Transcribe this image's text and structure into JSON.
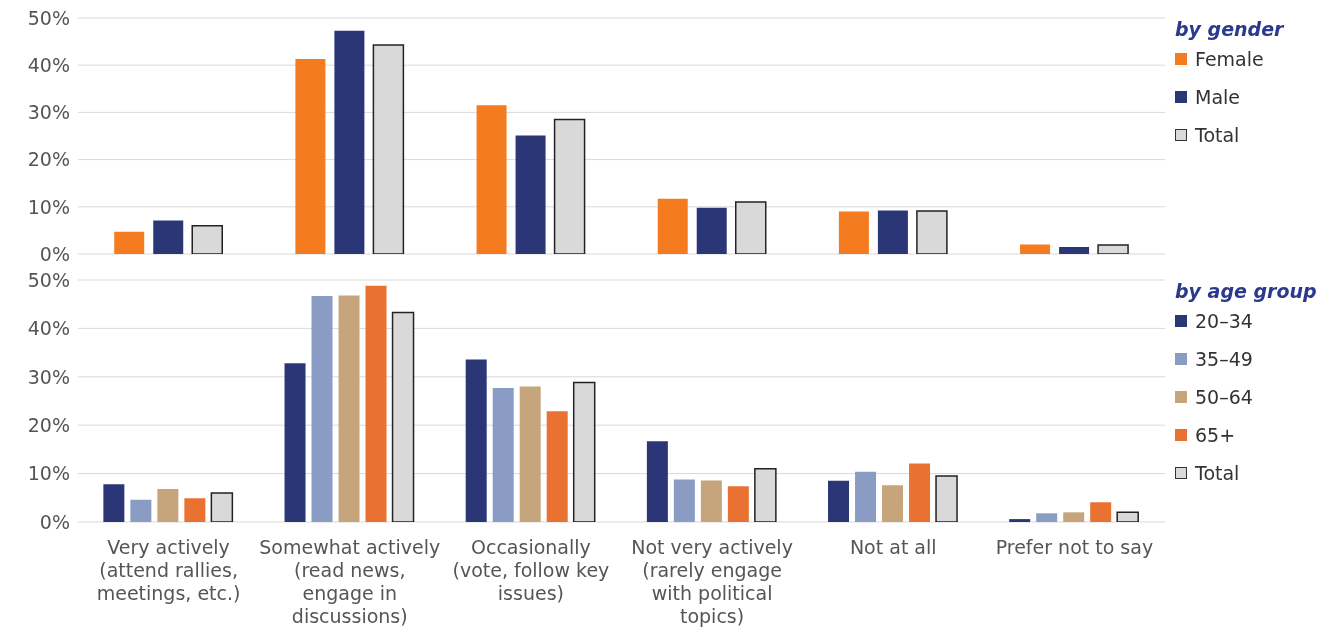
{
  "chart_data": [
    {
      "type": "bar",
      "legend_title": "by gender",
      "categories": [
        null,
        null,
        null,
        null,
        null,
        null
      ],
      "series": [
        {
          "name": "Female",
          "color": "#f47b20",
          "values": [
            4.7,
            41.3,
            31.5,
            11.7,
            9.0,
            2.0
          ]
        },
        {
          "name": "Male",
          "color": "#2b3677",
          "values": [
            7.1,
            47.3,
            25.1,
            9.8,
            9.2,
            1.5
          ]
        },
        {
          "name": "Total",
          "color": "#d9d9d9",
          "values": [
            6.0,
            44.3,
            28.5,
            11.0,
            9.1,
            1.9
          ]
        }
      ],
      "ylim": [
        0,
        50
      ],
      "yticks": [
        {
          "value": 0,
          "label": "0%"
        },
        {
          "value": 10,
          "label": "10%"
        },
        {
          "value": 20,
          "label": "20%"
        },
        {
          "value": 30,
          "label": "30%"
        },
        {
          "value": 40,
          "label": "40%"
        },
        {
          "value": 50,
          "label": "50%"
        }
      ],
      "grid": "y",
      "legend": "top right",
      "tick_labels": "y"
    },
    {
      "type": "bar",
      "legend_title": "by age group",
      "categories": [
        "Very actively (attend rallies, meetings, etc.)",
        "Somewhat actively (read news, engage in discussions)",
        "Occasionally (vote, follow key issues)",
        "Not very actively (rarely engage with political topics)",
        "Not at all",
        "Prefer not to say"
      ],
      "series": [
        {
          "name": "20–34",
          "color": "#2b3677",
          "values": [
            7.8,
            32.8,
            33.6,
            16.7,
            8.5,
            0.6
          ]
        },
        {
          "name": "35–49",
          "color": "#8a9cc4",
          "values": [
            4.6,
            46.7,
            27.7,
            8.8,
            10.4,
            1.8
          ]
        },
        {
          "name": "50–64",
          "color": "#c6a57c",
          "values": [
            6.8,
            46.8,
            28.0,
            8.6,
            7.6,
            2.0
          ]
        },
        {
          "name": "65+",
          "color": "#e97132",
          "values": [
            4.9,
            48.8,
            22.9,
            7.4,
            12.1,
            4.1
          ]
        },
        {
          "name": "Total",
          "color": "#d9d9d9",
          "values": [
            6.0,
            43.3,
            28.8,
            11.0,
            9.5,
            2.0
          ]
        }
      ],
      "ylim": [
        0,
        50
      ],
      "yticks": [
        {
          "value": 0,
          "label": "0%"
        },
        {
          "value": 10,
          "label": "10%"
        },
        {
          "value": 20,
          "label": "20%"
        },
        {
          "value": 30,
          "label": "30%"
        },
        {
          "value": 40,
          "label": "40%"
        },
        {
          "value": 50,
          "label": "50%"
        }
      ],
      "grid": "y",
      "legend": "top right"
    }
  ]
}
